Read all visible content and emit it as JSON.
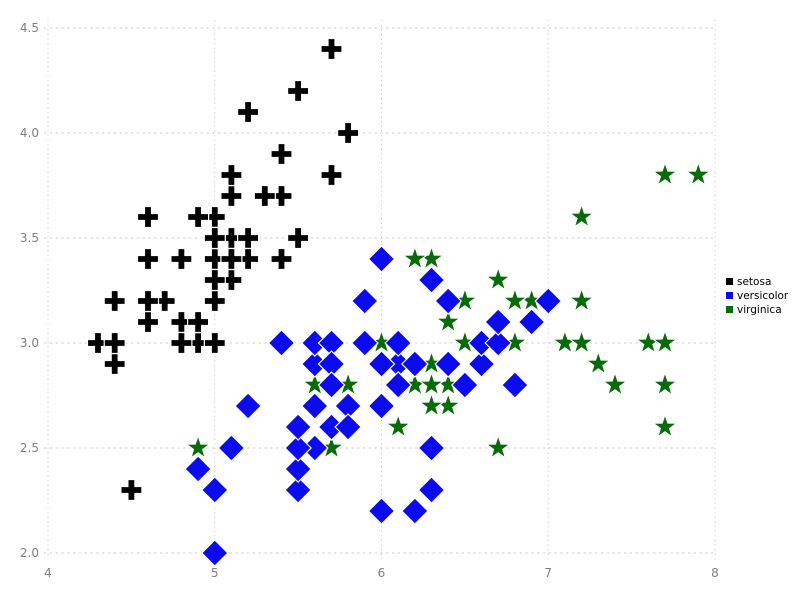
{
  "figure": {
    "background": "#ffffff"
  },
  "chart_data": {
    "type": "scatter",
    "title": "",
    "xlabel": "",
    "ylabel": "",
    "xlim": [
      4,
      8
    ],
    "ylim": [
      2.0,
      4.5
    ],
    "x_ticks": [
      "4",
      "5",
      "6",
      "7",
      "8"
    ],
    "y_ticks": [
      "2.0",
      "2.5",
      "3.0",
      "3.5",
      "4.0",
      "4.5"
    ],
    "grid": {
      "visible": true,
      "style": "dashed",
      "color": "#cbcbe2"
    },
    "tick_label_color": "#847e84",
    "legend": {
      "position": "right-center",
      "text_color": "#000000"
    },
    "draw_order": [
      "virginica",
      "versicolor",
      "setosa"
    ],
    "series": [
      {
        "name": "setosa",
        "marker": "plus",
        "color": "#000000",
        "points": [
          [
            5.1,
            3.5
          ],
          [
            4.9,
            3.0
          ],
          [
            4.7,
            3.2
          ],
          [
            4.6,
            3.1
          ],
          [
            5.0,
            3.6
          ],
          [
            5.4,
            3.9
          ],
          [
            4.6,
            3.4
          ],
          [
            5.0,
            3.4
          ],
          [
            4.4,
            2.9
          ],
          [
            4.9,
            3.1
          ],
          [
            5.4,
            3.7
          ],
          [
            4.8,
            3.4
          ],
          [
            4.8,
            3.0
          ],
          [
            4.3,
            3.0
          ],
          [
            5.8,
            4.0
          ],
          [
            5.7,
            4.4
          ],
          [
            5.4,
            3.9
          ],
          [
            5.1,
            3.5
          ],
          [
            5.7,
            3.8
          ],
          [
            5.1,
            3.8
          ],
          [
            5.4,
            3.4
          ],
          [
            5.1,
            3.7
          ],
          [
            4.6,
            3.6
          ],
          [
            5.1,
            3.3
          ],
          [
            4.8,
            3.4
          ],
          [
            5.0,
            3.0
          ],
          [
            5.0,
            3.4
          ],
          [
            5.2,
            3.5
          ],
          [
            5.2,
            3.4
          ],
          [
            4.7,
            3.2
          ],
          [
            4.8,
            3.1
          ],
          [
            5.4,
            3.4
          ],
          [
            5.2,
            4.1
          ],
          [
            5.5,
            4.2
          ],
          [
            4.9,
            3.1
          ],
          [
            5.0,
            3.2
          ],
          [
            5.5,
            3.5
          ],
          [
            4.9,
            3.6
          ],
          [
            4.4,
            3.0
          ],
          [
            5.1,
            3.4
          ],
          [
            5.0,
            3.5
          ],
          [
            4.5,
            2.3
          ],
          [
            4.4,
            3.2
          ],
          [
            5.0,
            3.5
          ],
          [
            5.1,
            3.8
          ],
          [
            4.8,
            3.0
          ],
          [
            5.1,
            3.8
          ],
          [
            4.6,
            3.2
          ],
          [
            5.3,
            3.7
          ],
          [
            5.0,
            3.3
          ]
        ]
      },
      {
        "name": "versicolor",
        "marker": "diamond",
        "color": "#0b0bee",
        "points": [
          [
            7.0,
            3.2
          ],
          [
            6.4,
            3.2
          ],
          [
            6.9,
            3.1
          ],
          [
            5.5,
            2.3
          ],
          [
            6.5,
            2.8
          ],
          [
            5.7,
            2.8
          ],
          [
            6.3,
            3.3
          ],
          [
            4.9,
            2.4
          ],
          [
            6.6,
            2.9
          ],
          [
            5.2,
            2.7
          ],
          [
            5.0,
            2.0
          ],
          [
            5.9,
            3.0
          ],
          [
            6.0,
            2.2
          ],
          [
            6.1,
            2.9
          ],
          [
            5.6,
            2.9
          ],
          [
            6.7,
            3.1
          ],
          [
            5.6,
            3.0
          ],
          [
            5.8,
            2.7
          ],
          [
            6.2,
            2.2
          ],
          [
            5.6,
            2.5
          ],
          [
            5.9,
            3.2
          ],
          [
            6.1,
            2.8
          ],
          [
            6.3,
            2.5
          ],
          [
            6.1,
            2.8
          ],
          [
            6.4,
            2.9
          ],
          [
            6.6,
            3.0
          ],
          [
            6.8,
            2.8
          ],
          [
            6.7,
            3.0
          ],
          [
            6.0,
            2.9
          ],
          [
            5.7,
            2.6
          ],
          [
            5.5,
            2.4
          ],
          [
            5.5,
            2.4
          ],
          [
            5.8,
            2.7
          ],
          [
            6.0,
            2.7
          ],
          [
            5.4,
            3.0
          ],
          [
            6.0,
            3.4
          ],
          [
            6.7,
            3.1
          ],
          [
            6.3,
            2.3
          ],
          [
            5.6,
            3.0
          ],
          [
            5.5,
            2.5
          ],
          [
            5.5,
            2.6
          ],
          [
            6.1,
            3.0
          ],
          [
            5.8,
            2.6
          ],
          [
            5.0,
            2.3
          ],
          [
            5.6,
            2.7
          ],
          [
            5.7,
            3.0
          ],
          [
            5.7,
            2.9
          ],
          [
            6.2,
            2.9
          ],
          [
            5.1,
            2.5
          ],
          [
            5.7,
            2.8
          ]
        ]
      },
      {
        "name": "virginica",
        "marker": "star",
        "color": "#076b07",
        "points": [
          [
            6.3,
            3.3
          ],
          [
            5.8,
            2.7
          ],
          [
            7.1,
            3.0
          ],
          [
            6.3,
            2.9
          ],
          [
            6.5,
            3.0
          ],
          [
            7.6,
            3.0
          ],
          [
            4.9,
            2.5
          ],
          [
            7.3,
            2.9
          ],
          [
            6.7,
            2.5
          ],
          [
            7.2,
            3.6
          ],
          [
            6.5,
            3.2
          ],
          [
            6.4,
            2.7
          ],
          [
            6.8,
            3.0
          ],
          [
            5.7,
            2.5
          ],
          [
            5.8,
            2.8
          ],
          [
            6.4,
            3.2
          ],
          [
            6.5,
            3.0
          ],
          [
            7.7,
            3.8
          ],
          [
            7.7,
            2.6
          ],
          [
            6.0,
            2.2
          ],
          [
            6.9,
            3.2
          ],
          [
            5.6,
            2.8
          ],
          [
            7.7,
            2.8
          ],
          [
            6.3,
            2.7
          ],
          [
            6.7,
            3.3
          ],
          [
            7.2,
            3.2
          ],
          [
            6.2,
            2.8
          ],
          [
            6.1,
            3.0
          ],
          [
            6.4,
            2.8
          ],
          [
            7.2,
            3.0
          ],
          [
            7.4,
            2.8
          ],
          [
            7.9,
            3.8
          ],
          [
            6.4,
            2.8
          ],
          [
            6.3,
            2.8
          ],
          [
            6.1,
            2.6
          ],
          [
            7.7,
            3.0
          ],
          [
            6.3,
            3.4
          ],
          [
            6.4,
            3.1
          ],
          [
            6.0,
            3.0
          ],
          [
            6.9,
            3.1
          ],
          [
            6.7,
            3.1
          ],
          [
            6.9,
            3.1
          ],
          [
            5.8,
            2.7
          ],
          [
            6.8,
            3.2
          ],
          [
            6.7,
            3.3
          ],
          [
            6.7,
            3.0
          ],
          [
            6.3,
            2.5
          ],
          [
            6.5,
            3.0
          ],
          [
            6.2,
            3.4
          ],
          [
            5.9,
            3.0
          ]
        ]
      }
    ]
  }
}
